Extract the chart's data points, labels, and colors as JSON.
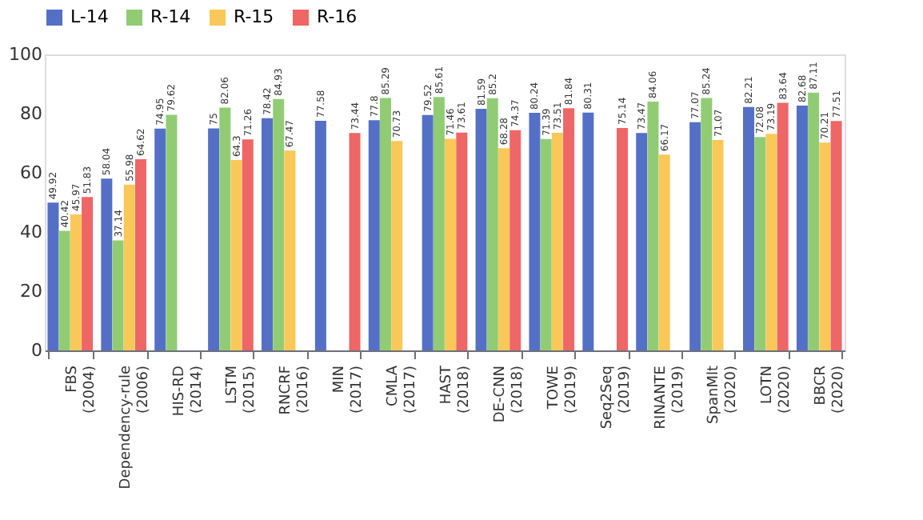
{
  "chart_data": {
    "type": "bar",
    "categories": [
      "FBS (2004)",
      "Dependency-rule (2006)",
      "HIS-RD (2014)",
      "LSTM (2015)",
      "RNCRF (2016)",
      "MIN (2017)",
      "CMLA (2017)",
      "HAST (2018)",
      "DE-CNN (2018)",
      "TOWE (2019)",
      "Seq2Seq (2019)",
      "RINANTE (2019)",
      "SpanMlt (2020)",
      "LOTN (2020)",
      "BBCR (2020)"
    ],
    "series": [
      {
        "name": "L-14",
        "color": "#5470c6",
        "values": [
          49.92,
          58.04,
          74.95,
          75,
          78.42,
          77.58,
          77.8,
          79.52,
          81.59,
          80.24,
          80.31,
          73.47,
          77.07,
          82.21,
          82.68
        ]
      },
      {
        "name": "R-14",
        "color": "#91cc75",
        "values": [
          40.42,
          37.14,
          79.62,
          82.06,
          84.93,
          null,
          85.29,
          85.61,
          85.2,
          71.39,
          null,
          84.06,
          85.24,
          72.08,
          87.11
        ]
      },
      {
        "name": "R-15",
        "color": "#fac858",
        "values": [
          45.97,
          55.98,
          null,
          64.3,
          67.47,
          null,
          70.73,
          71.46,
          68.28,
          73.51,
          null,
          66.17,
          71.07,
          73.19,
          70.21
        ]
      },
      {
        "name": "R-16",
        "color": "#ee6666",
        "values": [
          51.83,
          64.62,
          null,
          71.26,
          null,
          73.44,
          null,
          73.61,
          74.37,
          81.84,
          75.14,
          null,
          null,
          83.64,
          77.51
        ]
      }
    ],
    "ylim": [
      0,
      100
    ],
    "yticks": [
      0,
      20,
      40,
      60,
      80,
      100
    ],
    "grid": false,
    "legend": "top",
    "data_labels": true
  }
}
